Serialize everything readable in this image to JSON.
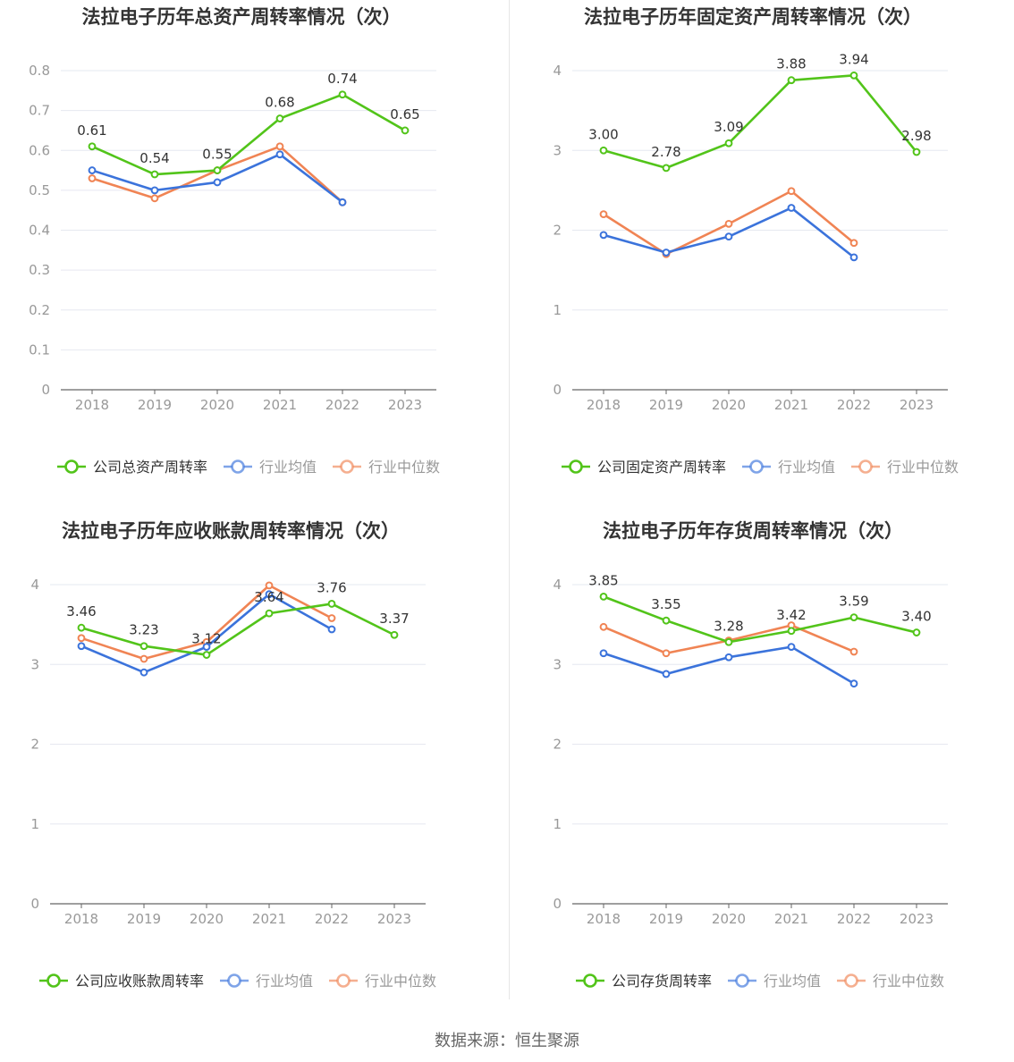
{
  "colors": {
    "company": "#52c41a",
    "avg": "#3b73db",
    "median": "#f08454",
    "grid": "#e6e8f0",
    "axis": "#666666",
    "label": "#999999",
    "title": "#333333",
    "value": "#333333"
  },
  "source_text": "数据来源：恒生聚源",
  "chart_data": [
    {
      "type": "line",
      "title": "法拉电子历年总资产周转率情况（次）",
      "categories": [
        "2018",
        "2019",
        "2020",
        "2021",
        "2022",
        "2023"
      ],
      "yticks": [
        "0",
        "0.1",
        "0.2",
        "0.3",
        "0.4",
        "0.5",
        "0.6",
        "0.7",
        "0.8"
      ],
      "ylim": [
        0,
        0.8
      ],
      "series": [
        {
          "name": "公司总资产周转率",
          "values": [
            0.61,
            0.54,
            0.55,
            0.68,
            0.74,
            0.65
          ],
          "labels": [
            "0.61",
            "0.54",
            "0.55",
            "0.68",
            "0.74",
            "0.65"
          ]
        },
        {
          "name": "行业均值",
          "values": [
            0.55,
            0.5,
            0.52,
            0.59,
            0.47,
            null
          ]
        },
        {
          "name": "行业中位数",
          "values": [
            0.53,
            0.48,
            0.55,
            0.61,
            0.47,
            null
          ]
        }
      ]
    },
    {
      "type": "line",
      "title": "法拉电子历年固定资产周转率情况（次）",
      "categories": [
        "2018",
        "2019",
        "2020",
        "2021",
        "2022",
        "2023"
      ],
      "yticks": [
        "0",
        "1",
        "2",
        "3",
        "4"
      ],
      "ylim": [
        0,
        4
      ],
      "series": [
        {
          "name": "公司固定资产周转率",
          "values": [
            3.0,
            2.78,
            3.09,
            3.88,
            3.94,
            2.98
          ],
          "labels": [
            "3.00",
            "2.78",
            "3.09",
            "3.88",
            "3.94",
            "2.98"
          ]
        },
        {
          "name": "行业均值",
          "values": [
            1.94,
            1.72,
            1.92,
            2.28,
            1.66,
            null
          ]
        },
        {
          "name": "行业中位数",
          "values": [
            2.2,
            1.7,
            2.08,
            2.49,
            1.84,
            null
          ]
        }
      ]
    },
    {
      "type": "line",
      "title": "法拉电子历年应收账款周转率情况（次）",
      "categories": [
        "2018",
        "2019",
        "2020",
        "2021",
        "2022",
        "2023"
      ],
      "yticks": [
        "0",
        "1",
        "2",
        "3",
        "4"
      ],
      "ylim": [
        0,
        4
      ],
      "series": [
        {
          "name": "公司应收账款周转率",
          "values": [
            3.46,
            3.23,
            3.12,
            3.64,
            3.76,
            3.37
          ],
          "labels": [
            "3.46",
            "3.23",
            "3.12",
            "3.64",
            "3.76",
            "3.37"
          ]
        },
        {
          "name": "行业均值",
          "values": [
            3.23,
            2.9,
            3.22,
            3.88,
            3.44,
            null
          ]
        },
        {
          "name": "行业中位数",
          "values": [
            3.33,
            3.07,
            3.28,
            3.99,
            3.58,
            null
          ]
        }
      ]
    },
    {
      "type": "line",
      "title": "法拉电子历年存货周转率情况（次）",
      "categories": [
        "2018",
        "2019",
        "2020",
        "2021",
        "2022",
        "2023"
      ],
      "yticks": [
        "0",
        "1",
        "2",
        "3",
        "4"
      ],
      "ylim": [
        0,
        4
      ],
      "series": [
        {
          "name": "公司存货周转率",
          "values": [
            3.85,
            3.55,
            3.28,
            3.42,
            3.59,
            3.4
          ],
          "labels": [
            "3.85",
            "3.55",
            "3.28",
            "3.42",
            "3.59",
            "3.40"
          ]
        },
        {
          "name": "行业均值",
          "values": [
            3.14,
            2.88,
            3.09,
            3.22,
            2.76,
            null
          ]
        },
        {
          "name": "行业中位数",
          "values": [
            3.47,
            3.14,
            3.3,
            3.49,
            3.16,
            null
          ]
        }
      ]
    }
  ]
}
